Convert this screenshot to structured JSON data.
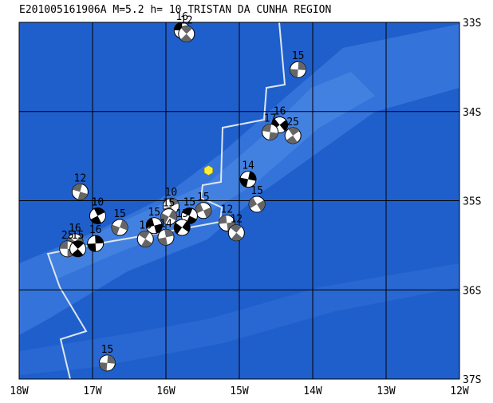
{
  "title": "E201005161906A  M=5.2 h= 10 TRISTAN DA CUNHA REGION",
  "xlim": [
    -18,
    -12
  ],
  "ylim": [
    -33,
    -37
  ],
  "xticks": [
    {
      "value": -18,
      "label": "18W"
    },
    {
      "value": -17,
      "label": "17W"
    },
    {
      "value": -16,
      "label": "16W"
    },
    {
      "value": -15,
      "label": "15W"
    },
    {
      "value": -14,
      "label": "14W"
    },
    {
      "value": -13,
      "label": "13W"
    },
    {
      "value": -12,
      "label": "12W"
    }
  ],
  "yticks": [
    {
      "value": -33,
      "label": "33S"
    },
    {
      "value": -34,
      "label": "34S"
    },
    {
      "value": -35,
      "label": "35S"
    },
    {
      "value": -36,
      "label": "36S"
    },
    {
      "value": -37,
      "label": "37S"
    }
  ],
  "epicenter": {
    "lon": -15.42,
    "lat": -34.66,
    "color": "#ffee33"
  },
  "events": [
    {
      "lon": -15.78,
      "lat": -33.09,
      "depth": "16"
    },
    {
      "lon": -15.72,
      "lat": -33.13,
      "depth": "12"
    },
    {
      "lon": -14.2,
      "lat": -33.53,
      "depth": "15"
    },
    {
      "lon": -14.45,
      "lat": -34.15,
      "depth": "16"
    },
    {
      "lon": -14.58,
      "lat": -34.23,
      "depth": "17"
    },
    {
      "lon": -14.27,
      "lat": -34.27,
      "depth": "25"
    },
    {
      "lon": -14.88,
      "lat": -34.76,
      "depth": "14"
    },
    {
      "lon": -14.76,
      "lat": -35.04,
      "depth": "15"
    },
    {
      "lon": -17.17,
      "lat": -34.9,
      "depth": "12"
    },
    {
      "lon": -16.93,
      "lat": -35.17,
      "depth": "10"
    },
    {
      "lon": -16.63,
      "lat": -35.3,
      "depth": "15"
    },
    {
      "lon": -15.49,
      "lat": -35.11,
      "depth": "15"
    },
    {
      "lon": -15.68,
      "lat": -35.17,
      "depth": "15"
    },
    {
      "lon": -15.93,
      "lat": -35.06,
      "depth": "10"
    },
    {
      "lon": -15.96,
      "lat": -35.18,
      "depth": "15"
    },
    {
      "lon": -16.16,
      "lat": -35.28,
      "depth": "15"
    },
    {
      "lon": -16.28,
      "lat": -35.43,
      "depth": "16"
    },
    {
      "lon": -16.0,
      "lat": -35.41,
      "depth": "14"
    },
    {
      "lon": -15.78,
      "lat": -35.3,
      "depth": "15"
    },
    {
      "lon": -15.17,
      "lat": -35.25,
      "depth": "12"
    },
    {
      "lon": -15.04,
      "lat": -35.36,
      "depth": "12"
    },
    {
      "lon": -16.96,
      "lat": -35.48,
      "depth": "16"
    },
    {
      "lon": -17.24,
      "lat": -35.46,
      "depth": "16"
    },
    {
      "lon": -17.34,
      "lat": -35.54,
      "depth": "25"
    },
    {
      "lon": -17.2,
      "lat": -35.54,
      "depth": "15"
    },
    {
      "lon": -16.8,
      "lat": -36.82,
      "depth": "15"
    }
  ]
}
